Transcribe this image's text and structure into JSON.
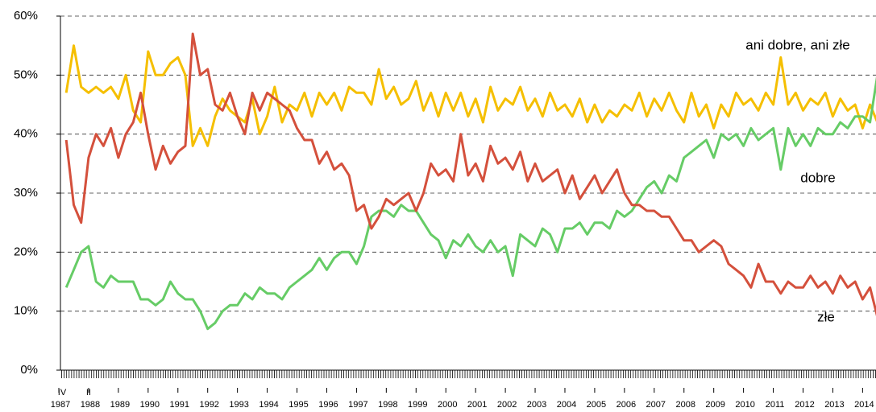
{
  "chart_data": {
    "type": "line",
    "annotations": [
      "IV",
      "II"
    ],
    "x": [
      1987.25,
      1987.5,
      1987.75,
      1988,
      1988.25,
      1988.5,
      1988.75,
      1989,
      1989.25,
      1989.5,
      1989.75,
      1990,
      1990.25,
      1990.5,
      1990.75,
      1991,
      1991.25,
      1991.5,
      1991.75,
      1992,
      1992.25,
      1992.5,
      1992.75,
      1993,
      1993.25,
      1993.5,
      1993.75,
      1994,
      1994.25,
      1994.5,
      1994.75,
      1995,
      1995.25,
      1995.5,
      1995.75,
      1996,
      1996.25,
      1996.5,
      1996.75,
      1997,
      1997.25,
      1997.5,
      1997.75,
      1998,
      1998.25,
      1998.5,
      1998.75,
      1999,
      1999.25,
      1999.5,
      1999.75,
      2000,
      2000.25,
      2000.5,
      2000.75,
      2001,
      2001.25,
      2001.5,
      2001.75,
      2002,
      2002.25,
      2002.5,
      2002.75,
      2003,
      2003.25,
      2003.5,
      2003.75,
      2004,
      2004.25,
      2004.5,
      2004.75,
      2005,
      2005.25,
      2005.5,
      2005.75,
      2006,
      2006.25,
      2006.5,
      2006.75,
      2007,
      2007.25,
      2007.5,
      2007.75,
      2008,
      2008.25,
      2008.5,
      2008.75,
      2009,
      2009.25,
      2009.5,
      2009.75,
      2010,
      2010.25,
      2010.5,
      2010.75,
      2011,
      2011.25,
      2011.5,
      2011.75,
      2012,
      2012.25,
      2012.5,
      2012.75,
      2013,
      2013.25,
      2013.5,
      2013.75,
      2014,
      2014.25,
      2014.5
    ],
    "series": [
      {
        "name": "ani dobre, ani złe",
        "color": "#f5bf00",
        "values": [
          47,
          55,
          48,
          47,
          48,
          47,
          48,
          46,
          50,
          44,
          42,
          54,
          50,
          50,
          52,
          53,
          50,
          38,
          41,
          38,
          43,
          46,
          44,
          43,
          42,
          46,
          40,
          43,
          48,
          42,
          45,
          44,
          47,
          43,
          47,
          45,
          47,
          44,
          48,
          47,
          47,
          45,
          51,
          46,
          48,
          45,
          46,
          49,
          44,
          47,
          43,
          47,
          44,
          47,
          43,
          46,
          42,
          48,
          44,
          46,
          45,
          48,
          44,
          46,
          43,
          47,
          44,
          45,
          43,
          46,
          42,
          45,
          42,
          44,
          43,
          45,
          44,
          47,
          43,
          46,
          44,
          47,
          44,
          42,
          47,
          43,
          45,
          41,
          45,
          43,
          47,
          45,
          46,
          44,
          47,
          45,
          53,
          45,
          47,
          44,
          46,
          45,
          47,
          43,
          46,
          44,
          45,
          41,
          45,
          42
        ]
      },
      {
        "name": "dobre",
        "color": "#66cc66",
        "values": [
          14,
          17,
          20,
          21,
          15,
          14,
          16,
          15,
          15,
          15,
          12,
          12,
          11,
          12,
          15,
          13,
          12,
          12,
          10,
          7,
          8,
          10,
          11,
          11,
          13,
          12,
          14,
          13,
          13,
          12,
          14,
          15,
          16,
          17,
          19,
          17,
          19,
          20,
          20,
          18,
          21,
          26,
          27,
          27,
          26,
          28,
          27,
          27,
          25,
          23,
          22,
          19,
          22,
          21,
          23,
          21,
          20,
          22,
          20,
          21,
          16,
          23,
          22,
          21,
          24,
          23,
          20,
          24,
          24,
          25,
          23,
          25,
          25,
          24,
          27,
          26,
          27,
          29,
          31,
          32,
          30,
          33,
          32,
          36,
          37,
          38,
          39,
          36,
          40,
          39,
          40,
          38,
          41,
          39,
          40,
          41,
          34,
          41,
          38,
          40,
          38,
          41,
          40,
          40,
          42,
          41,
          43,
          43,
          42,
          50
        ]
      },
      {
        "name": "złe",
        "color": "#d4503c",
        "values": [
          39,
          28,
          25,
          36,
          40,
          38,
          41,
          36,
          40,
          42,
          47,
          40,
          34,
          38,
          35,
          37,
          38,
          57,
          50,
          51,
          45,
          44,
          47,
          43,
          40,
          47,
          44,
          47,
          46,
          45,
          44,
          41,
          39,
          39,
          35,
          37,
          34,
          35,
          33,
          27,
          28,
          24,
          26,
          29,
          28,
          29,
          30,
          27,
          30,
          35,
          33,
          34,
          32,
          40,
          33,
          35,
          32,
          38,
          35,
          36,
          34,
          37,
          32,
          35,
          32,
          33,
          34,
          30,
          33,
          29,
          31,
          33,
          30,
          32,
          34,
          30,
          28,
          28,
          27,
          27,
          26,
          26,
          24,
          22,
          22,
          20,
          21,
          22,
          21,
          18,
          17,
          16,
          14,
          18,
          15,
          15,
          13,
          15,
          14,
          14,
          16,
          14,
          15,
          13,
          16,
          14,
          15,
          12,
          14,
          9
        ]
      }
    ],
    "xlim": [
      1987,
      2014.45
    ],
    "xticks": [
      1987,
      1988,
      1989,
      1990,
      1991,
      1992,
      1993,
      1994,
      1995,
      1996,
      1997,
      1998,
      1999,
      2000,
      2001,
      2002,
      2003,
      2004,
      2005,
      2006,
      2007,
      2008,
      2009,
      2010,
      2011,
      2012,
      2013,
      2014
    ],
    "ylim": [
      0,
      60
    ],
    "yticks": [
      {
        "value": 0,
        "label": "0%"
      },
      {
        "value": 10,
        "label": "10%"
      },
      {
        "value": 20,
        "label": "20%"
      },
      {
        "value": 30,
        "label": "30%"
      },
      {
        "value": 40,
        "label": "40%"
      },
      {
        "value": 50,
        "label": "50%"
      },
      {
        "value": 60,
        "label": "60%"
      }
    ],
    "grid": true
  }
}
